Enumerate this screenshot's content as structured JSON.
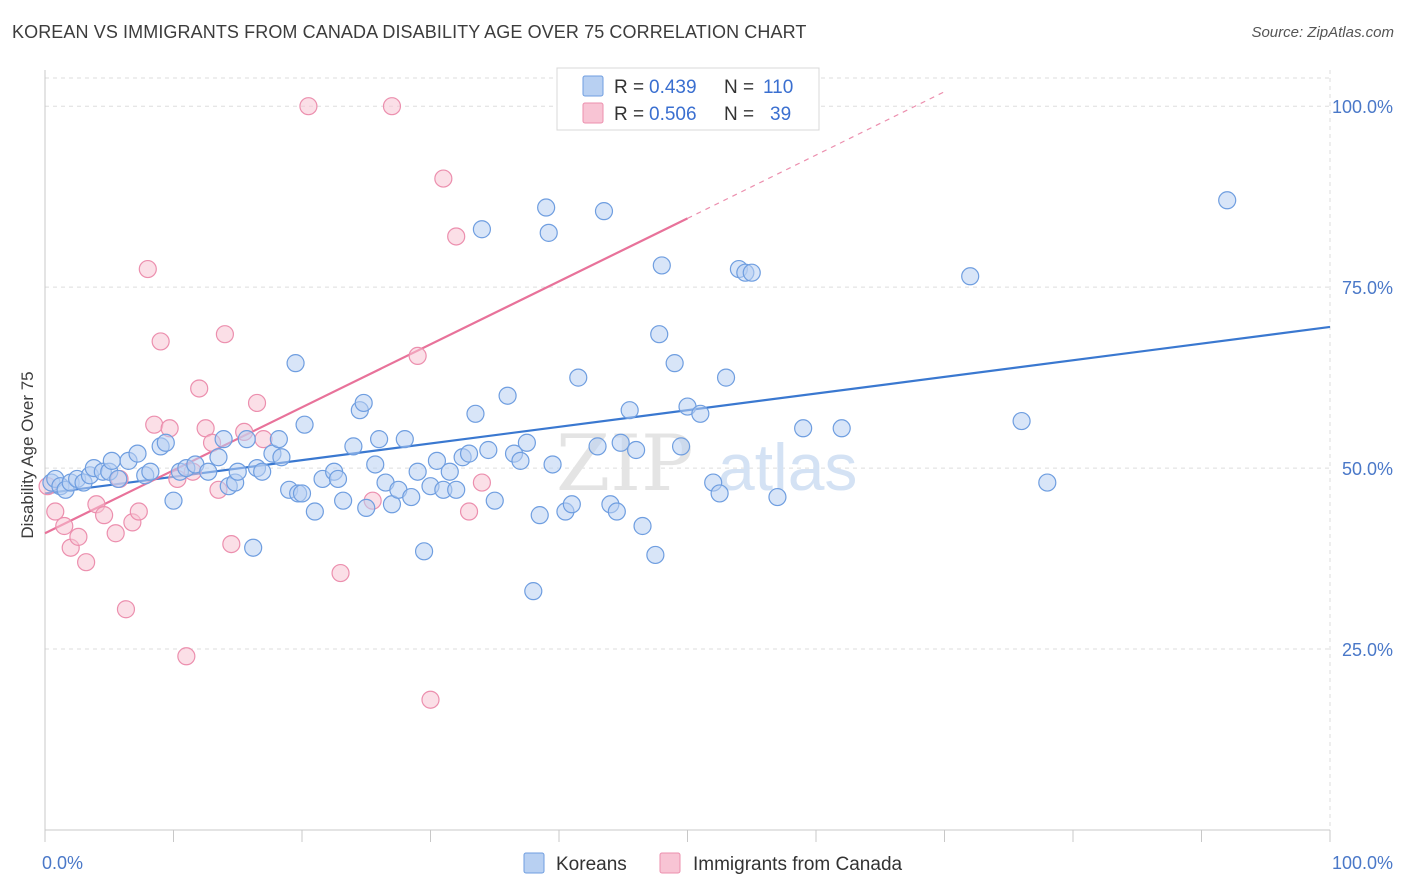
{
  "header": {
    "title": "KOREAN VS IMMIGRANTS FROM CANADA DISABILITY AGE OVER 75 CORRELATION CHART",
    "source": "Source: ZipAtlas.com"
  },
  "watermark": {
    "zip": "ZIP",
    "atlas": "atlas"
  },
  "colors": {
    "koreans_fill": "#b8d0f2",
    "koreans_stroke": "#6f9ee0",
    "koreans_line": "#3a78d0",
    "canada_fill": "#f8c4d4",
    "canada_stroke": "#ec8fae",
    "canada_line": "#e8729a",
    "grid": "#dddddd",
    "tick_label": "#4a78c8"
  },
  "legend": {
    "rows": [
      {
        "r_label": "R =",
        "r_value": "0.439",
        "n_label": "N =",
        "n_value": "110"
      },
      {
        "r_label": "R =",
        "r_value": "0.506",
        "n_label": "N =",
        "n_value": "39"
      }
    ]
  },
  "chart_data": {
    "type": "scatter",
    "title": "KOREAN VS IMMIGRANTS FROM CANADA DISABILITY AGE OVER 75 CORRELATION CHART",
    "xlabel": "",
    "ylabel": "Disability Age Over 75",
    "xlim": [
      0,
      100
    ],
    "ylim": [
      0,
      105
    ],
    "x_tick_labels": [
      "0.0%",
      "100.0%"
    ],
    "y_ticks": [
      25,
      50,
      75,
      100
    ],
    "y_tick_labels": [
      "25.0%",
      "50.0%",
      "75.0%",
      "100.0%"
    ],
    "grid": true,
    "legend_position": "bottom",
    "series": [
      {
        "name": "Koreans",
        "r": 0.439,
        "n": 110,
        "trend": {
          "x": [
            0,
            100
          ],
          "y": [
            46.5,
            69.5
          ]
        },
        "points": [
          [
            0.5,
            48
          ],
          [
            0.8,
            48.5
          ],
          [
            1.2,
            47.5
          ],
          [
            1.6,
            47
          ],
          [
            2,
            48
          ],
          [
            2.5,
            48.5
          ],
          [
            3,
            48
          ],
          [
            3.5,
            49
          ],
          [
            3.8,
            50
          ],
          [
            4.5,
            49.5
          ],
          [
            5,
            49.5
          ],
          [
            5.2,
            51
          ],
          [
            5.7,
            48.5
          ],
          [
            6.5,
            51
          ],
          [
            7.2,
            52
          ],
          [
            7.8,
            49
          ],
          [
            8.2,
            49.5
          ],
          [
            9,
            53
          ],
          [
            9.4,
            53.5
          ],
          [
            10,
            45.5
          ],
          [
            10.5,
            49.5
          ],
          [
            11,
            50
          ],
          [
            11.7,
            50.5
          ],
          [
            12.7,
            49.5
          ],
          [
            13.5,
            51.5
          ],
          [
            13.9,
            54
          ],
          [
            14.3,
            47.5
          ],
          [
            14.8,
            48
          ],
          [
            15,
            49.5
          ],
          [
            15.7,
            54
          ],
          [
            16.2,
            39
          ],
          [
            16.5,
            50
          ],
          [
            16.9,
            49.5
          ],
          [
            17.7,
            52
          ],
          [
            18.2,
            54
          ],
          [
            18.4,
            51.5
          ],
          [
            19,
            47
          ],
          [
            19.7,
            46.5
          ],
          [
            20,
            46.5
          ],
          [
            19.5,
            64.5
          ],
          [
            20.2,
            56
          ],
          [
            21,
            44
          ],
          [
            21.6,
            48.5
          ],
          [
            22.5,
            49.5
          ],
          [
            22.8,
            48.5
          ],
          [
            23.2,
            45.5
          ],
          [
            24,
            53
          ],
          [
            24.5,
            58
          ],
          [
            24.8,
            59
          ],
          [
            25,
            44.5
          ],
          [
            25.7,
            50.5
          ],
          [
            26,
            54
          ],
          [
            26.5,
            48
          ],
          [
            27,
            45
          ],
          [
            27.5,
            47
          ],
          [
            28,
            54
          ],
          [
            28.5,
            46
          ],
          [
            29,
            49.5
          ],
          [
            29.5,
            38.5
          ],
          [
            30,
            47.5
          ],
          [
            30.5,
            51
          ],
          [
            31,
            47
          ],
          [
            31.5,
            49.5
          ],
          [
            32,
            47
          ],
          [
            32.5,
            51.5
          ],
          [
            33,
            52
          ],
          [
            33.5,
            57.5
          ],
          [
            34,
            83
          ],
          [
            34.5,
            52.5
          ],
          [
            35,
            45.5
          ],
          [
            36,
            60
          ],
          [
            36.5,
            52
          ],
          [
            37,
            51
          ],
          [
            37.5,
            53.5
          ],
          [
            38,
            33
          ],
          [
            38.5,
            43.5
          ],
          [
            39,
            86
          ],
          [
            39.2,
            82.5
          ],
          [
            39.5,
            50.5
          ],
          [
            40.5,
            44
          ],
          [
            41,
            45
          ],
          [
            41.5,
            62.5
          ],
          [
            43,
            53
          ],
          [
            43.5,
            85.5
          ],
          [
            44,
            45
          ],
          [
            44.5,
            44
          ],
          [
            44.8,
            53.5
          ],
          [
            45.5,
            58
          ],
          [
            46,
            52.5
          ],
          [
            46.5,
            42
          ],
          [
            47.5,
            38
          ],
          [
            47.8,
            68.5
          ],
          [
            48,
            78
          ],
          [
            49,
            64.5
          ],
          [
            49.5,
            53
          ],
          [
            50,
            58.5
          ],
          [
            51,
            57.5
          ],
          [
            52,
            48
          ],
          [
            52.5,
            46.5
          ],
          [
            53,
            62.5
          ],
          [
            54,
            77.5
          ],
          [
            54.5,
            77
          ],
          [
            55,
            77
          ],
          [
            57,
            46
          ],
          [
            59,
            55.5
          ],
          [
            62,
            55.5
          ],
          [
            72,
            76.5
          ],
          [
            76,
            56.5
          ],
          [
            78,
            48
          ],
          [
            92,
            87
          ]
        ]
      },
      {
        "name": "Immigrants from Canada",
        "r": 0.506,
        "n": 39,
        "trend": {
          "x": [
            0,
            50
          ],
          "y": [
            41,
            84.5
          ],
          "dashed_to": {
            "x": 70,
            "y": 102
          }
        },
        "points": [
          [
            0.2,
            47.5
          ],
          [
            0.8,
            44
          ],
          [
            1.5,
            42
          ],
          [
            2,
            39
          ],
          [
            2.6,
            40.5
          ],
          [
            3.2,
            37
          ],
          [
            4,
            45
          ],
          [
            4.6,
            43.5
          ],
          [
            5.5,
            41
          ],
          [
            5.8,
            48.5
          ],
          [
            6.3,
            30.5
          ],
          [
            6.8,
            42.5
          ],
          [
            7.3,
            44
          ],
          [
            8,
            77.5
          ],
          [
            8.5,
            56
          ],
          [
            9,
            67.5
          ],
          [
            9.7,
            55.5
          ],
          [
            10.3,
            48.5
          ],
          [
            11,
            24
          ],
          [
            11.5,
            49.5
          ],
          [
            12,
            61
          ],
          [
            12.5,
            55.5
          ],
          [
            13,
            53.5
          ],
          [
            13.5,
            47
          ],
          [
            14,
            68.5
          ],
          [
            14.5,
            39.5
          ],
          [
            15.5,
            55
          ],
          [
            16.5,
            59
          ],
          [
            17,
            54
          ],
          [
            20.5,
            100
          ],
          [
            23,
            35.5
          ],
          [
            25.5,
            45.5
          ],
          [
            27,
            100
          ],
          [
            29,
            65.5
          ],
          [
            30,
            18
          ],
          [
            31,
            90
          ],
          [
            32,
            82
          ],
          [
            33,
            44
          ],
          [
            34,
            48
          ]
        ]
      }
    ]
  },
  "bottom_legend": {
    "items": [
      {
        "label": "Koreans"
      },
      {
        "label": "Immigrants from Canada"
      }
    ]
  }
}
